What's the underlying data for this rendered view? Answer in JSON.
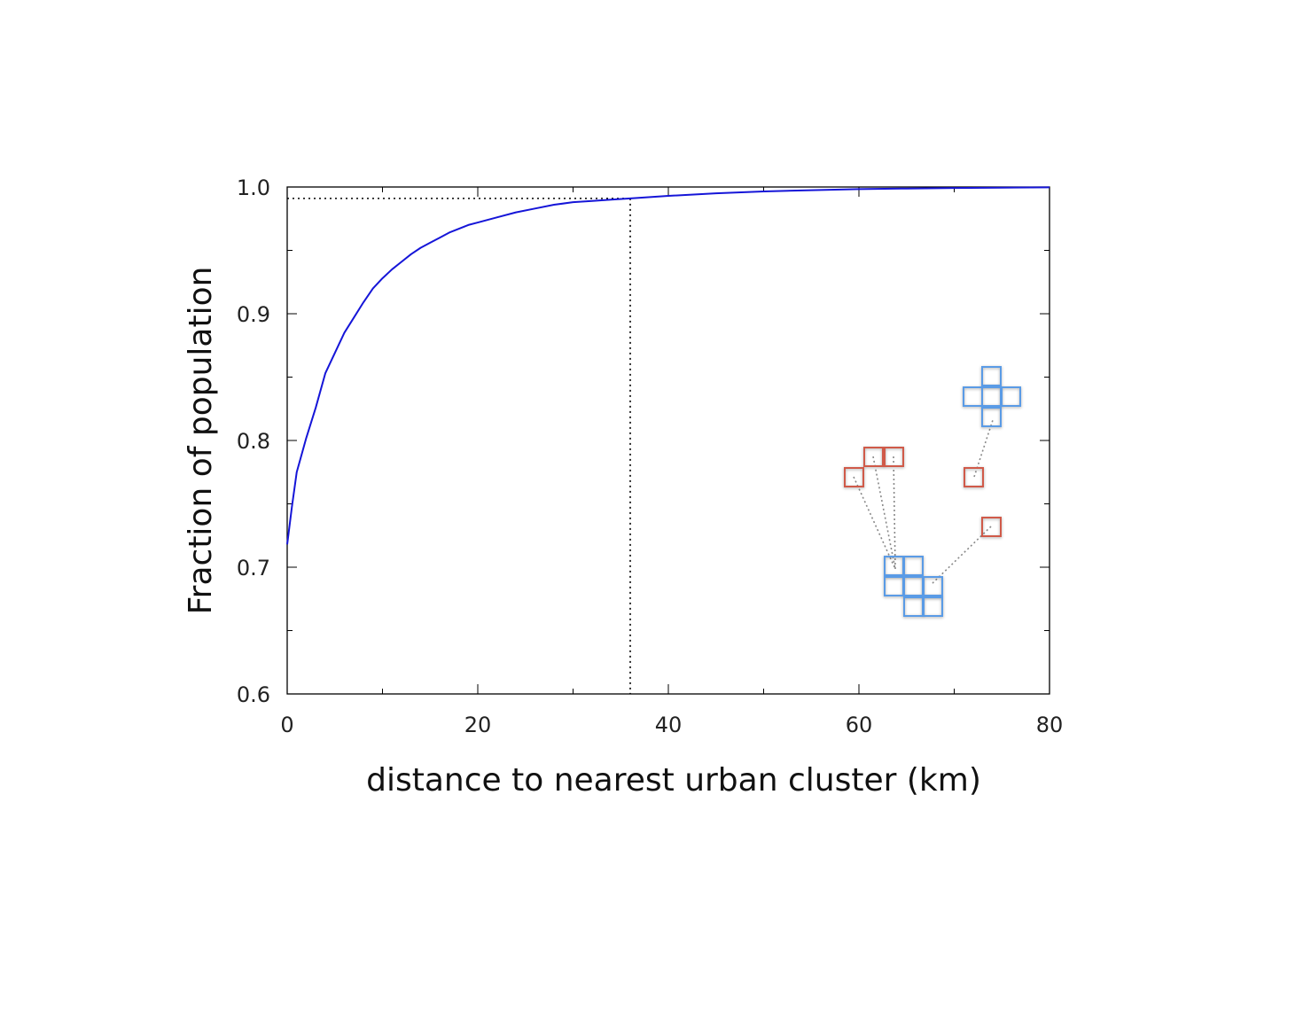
{
  "chart_data": {
    "type": "line",
    "title": "",
    "xlabel": "distance to nearest urban cluster (km)",
    "ylabel": "Fraction of population",
    "xlim": [
      0,
      80
    ],
    "ylim": [
      0.6,
      1.0
    ],
    "x_ticks": [
      0,
      20,
      40,
      60,
      80
    ],
    "x_tick_labels": [
      "0",
      "20",
      "40",
      "60",
      "80"
    ],
    "y_ticks": [
      0.6,
      0.7,
      0.8,
      0.9,
      1.0
    ],
    "y_tick_labels": [
      "0.6",
      "0.7",
      "0.8",
      "0.9",
      "1.0"
    ],
    "grid": false,
    "series": [
      {
        "color": "#1515d8",
        "x": [
          0,
          0.5,
          1,
          2,
          3,
          4,
          5,
          6,
          7,
          8,
          9,
          10,
          11,
          12,
          13,
          14,
          15,
          16,
          17,
          18,
          19,
          20,
          22,
          24,
          26,
          28,
          30,
          32,
          34,
          36,
          40,
          45,
          50,
          55,
          60,
          65,
          70,
          75,
          80
        ],
        "y": [
          0.718,
          0.748,
          0.775,
          0.802,
          0.826,
          0.853,
          0.869,
          0.885,
          0.897,
          0.909,
          0.92,
          0.928,
          0.935,
          0.941,
          0.947,
          0.952,
          0.956,
          0.96,
          0.964,
          0.967,
          0.97,
          0.972,
          0.976,
          0.98,
          0.983,
          0.986,
          0.988,
          0.989,
          0.99,
          0.991,
          0.993,
          0.995,
          0.9965,
          0.9975,
          0.9983,
          0.9988,
          0.9992,
          0.9995,
          0.9997
        ]
      }
    ],
    "reference_lines": {
      "x_value": 36,
      "y_value": 0.991,
      "style": "dotted",
      "color": "#000000"
    },
    "inset_illustration": {
      "urban_cluster_color": "#5a9be6",
      "rural_cell_color": "#d05a4a",
      "connector_color": "#888888"
    }
  }
}
